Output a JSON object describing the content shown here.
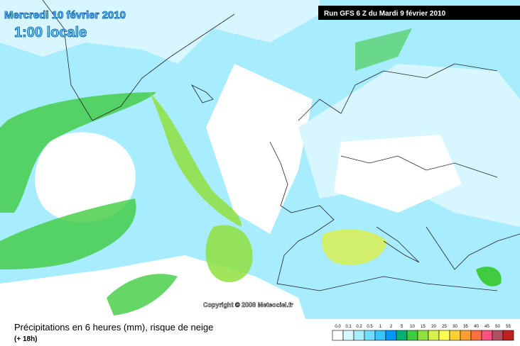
{
  "header": {
    "date": "Mercredi 10 février 2010",
    "time": "1:00 locale",
    "run": "Run GFS 6 Z du Mardi 9 février 2010"
  },
  "copyright": "Copyright © 2008 Meteociel.fr",
  "footer": {
    "title": "Précipitations en 6 heures (mm), risque de neige",
    "lead": "(+ 18h)"
  },
  "legend": {
    "labels": [
      "0.0",
      "0.1",
      "0.2",
      "0.5",
      "1",
      "2",
      "5",
      "10",
      "15",
      "20",
      "25",
      "30",
      "35",
      "40",
      "45",
      "50",
      "55"
    ],
    "colors": [
      "#ffffff",
      "#d8f6ff",
      "#a8ecff",
      "#70dcff",
      "#38c4ff",
      "#0096ff",
      "#00b070",
      "#40cc40",
      "#90e040",
      "#d8f050",
      "#ffff50",
      "#ffd030",
      "#ffa030",
      "#ff7040",
      "#ff5080",
      "#b05060",
      "#c02020"
    ]
  }
}
